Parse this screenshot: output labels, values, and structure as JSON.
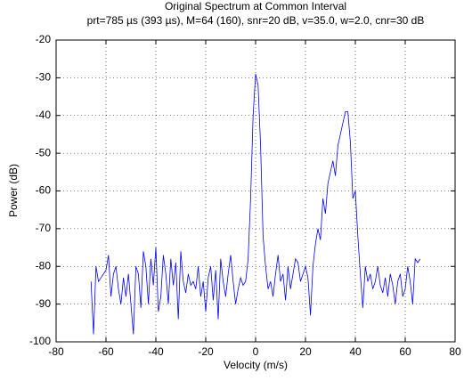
{
  "chart_data": {
    "type": "line",
    "title": "Original Spectrum at Common Interval",
    "subtitle": "prt=785 µs (393 µs), M=64 (160), snr=20 dB, v=35.0, w=2.0, cnr=30 dB",
    "x_label": "Velocity (m/s)",
    "y_label": "Power (dB)",
    "color": "#0000ff",
    "grid": true,
    "xlim": [
      -80,
      80
    ],
    "xticks": [
      -80,
      -60,
      -40,
      -20,
      0,
      20,
      40,
      60,
      80
    ],
    "ylim": [
      -100,
      -20
    ],
    "yticks": [
      -100,
      -90,
      -80,
      -70,
      -60,
      -50,
      -40,
      -30,
      -20
    ],
    "x": [
      -66,
      -65,
      -64,
      -63,
      -62,
      -61,
      -60,
      -59,
      -58,
      -57,
      -56,
      -55,
      -54,
      -53,
      -52,
      -51,
      -50,
      -49,
      -48,
      -47,
      -46,
      -45,
      -44,
      -43,
      -42,
      -41,
      -40,
      -39,
      -38,
      -37,
      -36,
      -35,
      -34,
      -33,
      -32,
      -31,
      -30,
      -29,
      -28,
      -27,
      -26,
      -25,
      -24,
      -23,
      -22,
      -21,
      -20,
      -19,
      -18,
      -17,
      -16,
      -15,
      -14,
      -13,
      -12,
      -11,
      -10,
      -9,
      -8,
      -7,
      -6,
      -5,
      -4,
      -3,
      -2,
      -1,
      0,
      1,
      2,
      3,
      4,
      5,
      6,
      7,
      8,
      9,
      10,
      11,
      12,
      13,
      14,
      15,
      16,
      17,
      18,
      19,
      20,
      21,
      22,
      23,
      24,
      25,
      26,
      27,
      28,
      29,
      30,
      31,
      32,
      33,
      34,
      35,
      36,
      37,
      38,
      39,
      40,
      41,
      42,
      43,
      44,
      45,
      46,
      47,
      48,
      49,
      50,
      51,
      52,
      53,
      54,
      55,
      56,
      57,
      58,
      59,
      60,
      61,
      62,
      63,
      64,
      65,
      66
    ],
    "values": [
      -84,
      -98,
      -80,
      -84,
      -83,
      -82,
      -81,
      -77,
      -88,
      -82,
      -80,
      -86,
      -90,
      -83,
      -88,
      -82,
      -90,
      -98,
      -80,
      -82,
      -91,
      -76,
      -80,
      -90,
      -78,
      -85,
      -75,
      -92,
      -88,
      -77,
      -82,
      -90,
      -78,
      -85,
      -79,
      -94,
      -76,
      -84,
      -87,
      -82,
      -85,
      -84,
      -86,
      -80,
      -88,
      -84,
      -92,
      -83,
      -80,
      -89,
      -81,
      -94,
      -78,
      -84,
      -88,
      -82,
      -77,
      -84,
      -90,
      -86,
      -83,
      -85,
      -84,
      -78,
      -62,
      -40,
      -29,
      -32,
      -48,
      -72,
      -80,
      -86,
      -84,
      -88,
      -82,
      -77,
      -84,
      -82,
      -89,
      -80,
      -86,
      -82,
      -78,
      -79,
      -84,
      -82,
      -80,
      -83,
      -93,
      -80,
      -74,
      -70,
      -73,
      -62,
      -66,
      -58,
      -55,
      -52,
      -56,
      -48,
      -45,
      -42,
      -39,
      -39,
      -47,
      -62,
      -60,
      -72,
      -82,
      -91,
      -80,
      -84,
      -82,
      -86,
      -84,
      -80,
      -85,
      -87,
      -83,
      -88,
      -82,
      -85,
      -90,
      -84,
      -82,
      -88,
      -86,
      -80,
      -84,
      -90,
      -78,
      -79,
      -78
    ]
  }
}
